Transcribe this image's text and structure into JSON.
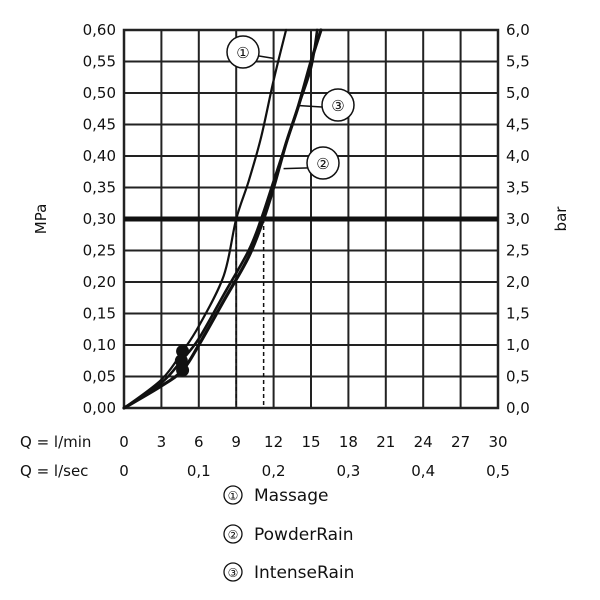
{
  "chart_data": {
    "type": "line",
    "x": {
      "primary_label": "Q = l/min",
      "primary_range": [
        0,
        30
      ],
      "primary_ticks": [
        "0",
        "3",
        "6",
        "9",
        "12",
        "15",
        "18",
        "21",
        "24",
        "27",
        "30"
      ],
      "secondary_label": "Q = l/sec",
      "secondary_ticks": [
        {
          "value": 0,
          "label": "0"
        },
        {
          "value": 0.1,
          "label": "0,1"
        },
        {
          "value": 0.2,
          "label": "0,2"
        },
        {
          "value": 0.3,
          "label": "0,3"
        },
        {
          "value": 0.4,
          "label": "0,4"
        },
        {
          "value": 0.5,
          "label": "0,5"
        }
      ]
    },
    "y": {
      "left_label": "MPa",
      "left_range": [
        0,
        0.6
      ],
      "left_ticks": [
        "0,00",
        "0,05",
        "0,10",
        "0,15",
        "0,20",
        "0,25",
        "0,30",
        "0,35",
        "0,40",
        "0,45",
        "0,50",
        "0,55",
        "0,60"
      ],
      "right_label": "bar",
      "right_range": [
        0,
        6
      ],
      "right_ticks": [
        "0,0",
        "0,5",
        "1,0",
        "1,5",
        "2,0",
        "2,5",
        "3,0",
        "3,5",
        "4,0",
        "4,5",
        "5,0",
        "5,5",
        "6,0"
      ]
    },
    "grid": true,
    "reference_line": {
      "y": 0.3
    },
    "series": [
      {
        "name": "Massage",
        "marker": "1",
        "points": [
          [
            0,
            0
          ],
          [
            3,
            0.045
          ],
          [
            4.7,
            0.09
          ],
          [
            6,
            0.13
          ],
          [
            8,
            0.21
          ],
          [
            9,
            0.3
          ],
          [
            10,
            0.36
          ],
          [
            11,
            0.43
          ],
          [
            12,
            0.52
          ],
          [
            13,
            0.6
          ]
        ]
      },
      {
        "name": "PowderRain",
        "marker": "2",
        "points": [
          [
            0,
            0
          ],
          [
            3,
            0.035
          ],
          [
            4.7,
            0.06
          ],
          [
            6,
            0.1
          ],
          [
            8,
            0.17
          ],
          [
            10,
            0.24
          ],
          [
            11.2,
            0.3
          ],
          [
            12,
            0.35
          ],
          [
            13,
            0.42
          ],
          [
            14,
            0.48
          ],
          [
            15,
            0.55
          ],
          [
            15.8,
            0.6
          ]
        ]
      },
      {
        "name": "IntenseRain",
        "marker": "3",
        "points": [
          [
            0,
            0
          ],
          [
            3,
            0.04
          ],
          [
            4.6,
            0.075
          ],
          [
            6,
            0.11
          ],
          [
            8,
            0.18
          ],
          [
            10,
            0.25
          ],
          [
            11,
            0.3
          ],
          [
            12,
            0.36
          ],
          [
            13,
            0.42
          ],
          [
            14,
            0.48
          ],
          [
            15,
            0.54
          ],
          [
            15.5,
            0.6
          ]
        ]
      }
    ],
    "dots": [
      [
        4.7,
        0.09
      ],
      [
        4.6,
        0.075
      ],
      [
        4.7,
        0.06
      ]
    ],
    "drop_lines": [
      {
        "x": 9.0,
        "y": 0.3
      },
      {
        "x": 11.2,
        "y": 0.3
      }
    ],
    "callouts": [
      {
        "series": "1",
        "label": "①",
        "anchor_x": 12,
        "anchor_y": 0.555
      },
      {
        "series": "3",
        "label": "③",
        "anchor_x": 14.1,
        "anchor_y": 0.48
      },
      {
        "series": "2",
        "label": "②",
        "anchor_x": 12.8,
        "anchor_y": 0.38
      }
    ],
    "legend": [
      {
        "marker": "①",
        "label": "Massage"
      },
      {
        "marker": "②",
        "label": "PowderRain"
      },
      {
        "marker": "③",
        "label": "IntenseRain"
      }
    ]
  }
}
